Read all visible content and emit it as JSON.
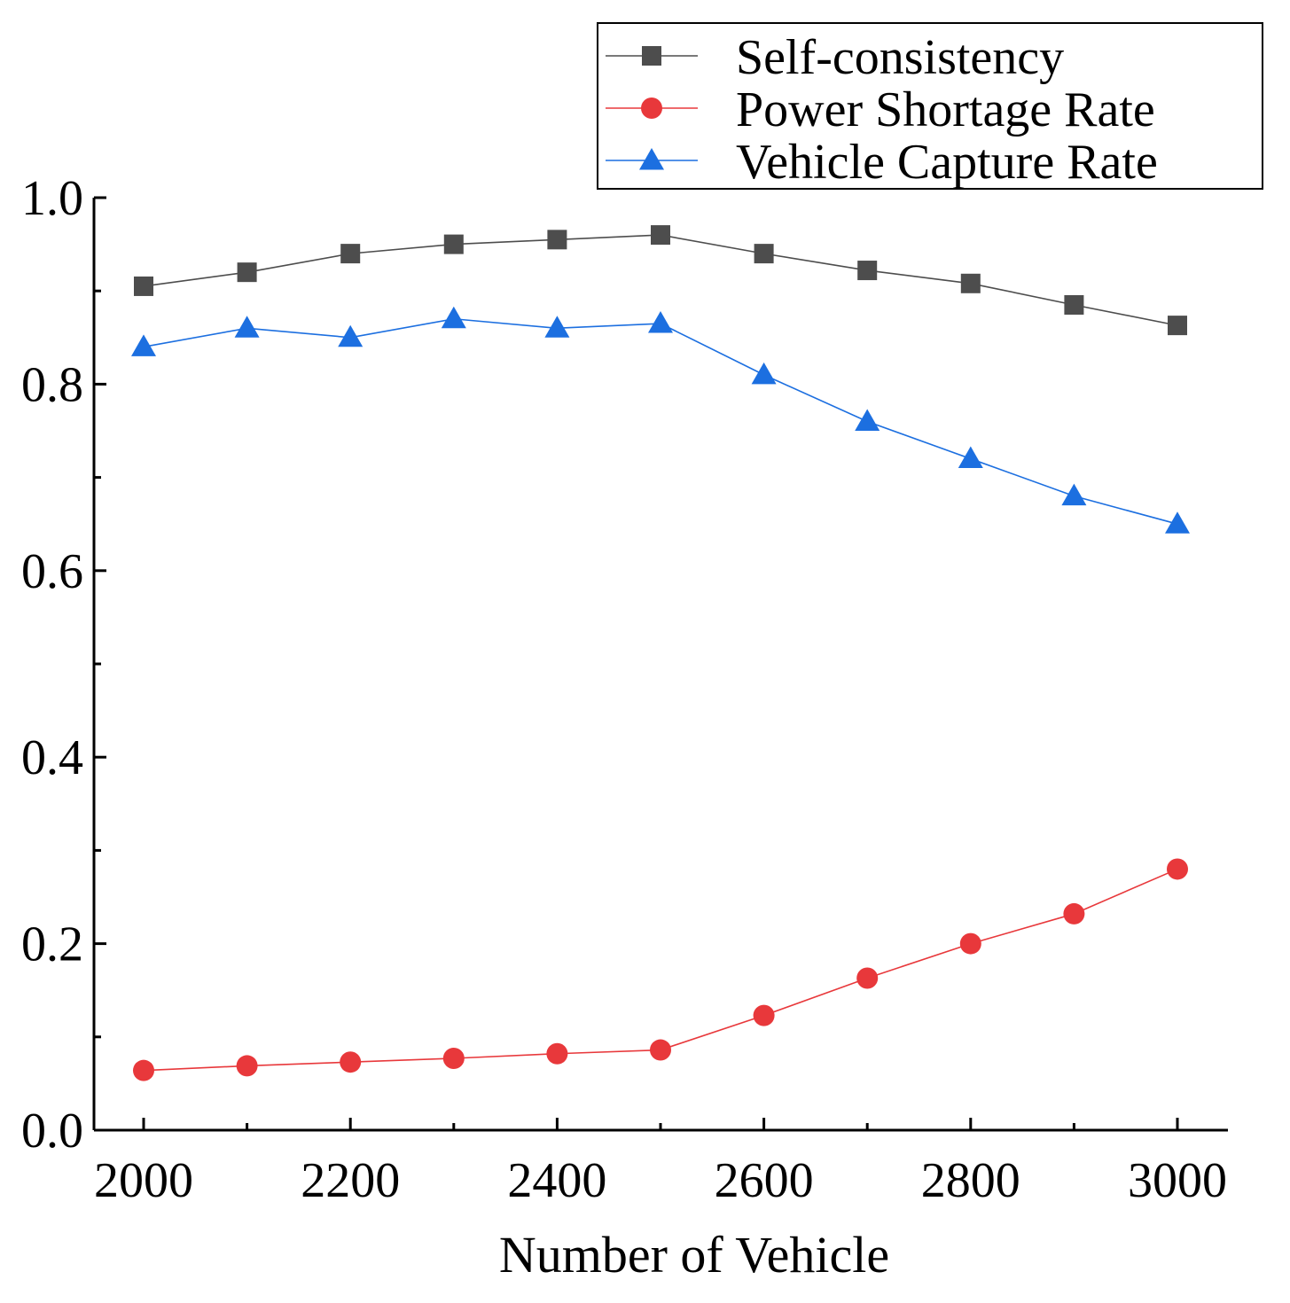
{
  "chart_data": {
    "type": "line",
    "title": "",
    "xlabel": "Number of Vehicle",
    "ylabel": "",
    "xlim": [
      1950,
      3050
    ],
    "ylim": [
      0.0,
      1.0
    ],
    "x": [
      2000,
      2100,
      2200,
      2300,
      2400,
      2500,
      2600,
      2700,
      2800,
      2900,
      3000
    ],
    "x_ticks": [
      2000,
      2200,
      2400,
      2600,
      2800,
      3000
    ],
    "x_tick_labels": [
      "2000",
      "2200",
      "2400",
      "2600",
      "2800",
      "3000"
    ],
    "y_ticks": [
      0.0,
      0.2,
      0.4,
      0.6,
      0.8,
      1.0
    ],
    "y_tick_labels": [
      "0.0",
      "0.2",
      "0.4",
      "0.6",
      "0.8",
      "1.0"
    ],
    "grid": false,
    "legend_position": "top-right",
    "series": [
      {
        "name": "Self-consistency",
        "color": "#4d4d4d",
        "marker": "square",
        "values": [
          0.905,
          0.92,
          0.94,
          0.95,
          0.955,
          0.96,
          0.94,
          0.922,
          0.908,
          0.885,
          0.863
        ]
      },
      {
        "name": "Power Shortage Rate",
        "color": "#e8383b",
        "marker": "circle",
        "values": [
          0.064,
          0.069,
          0.073,
          0.077,
          0.082,
          0.086,
          0.123,
          0.163,
          0.2,
          0.232,
          0.28
        ]
      },
      {
        "name": "Vehicle Capture Rate",
        "color": "#1c6fe0",
        "marker": "triangle",
        "values": [
          0.84,
          0.86,
          0.85,
          0.87,
          0.86,
          0.865,
          0.81,
          0.76,
          0.72,
          0.68,
          0.65
        ]
      }
    ]
  }
}
